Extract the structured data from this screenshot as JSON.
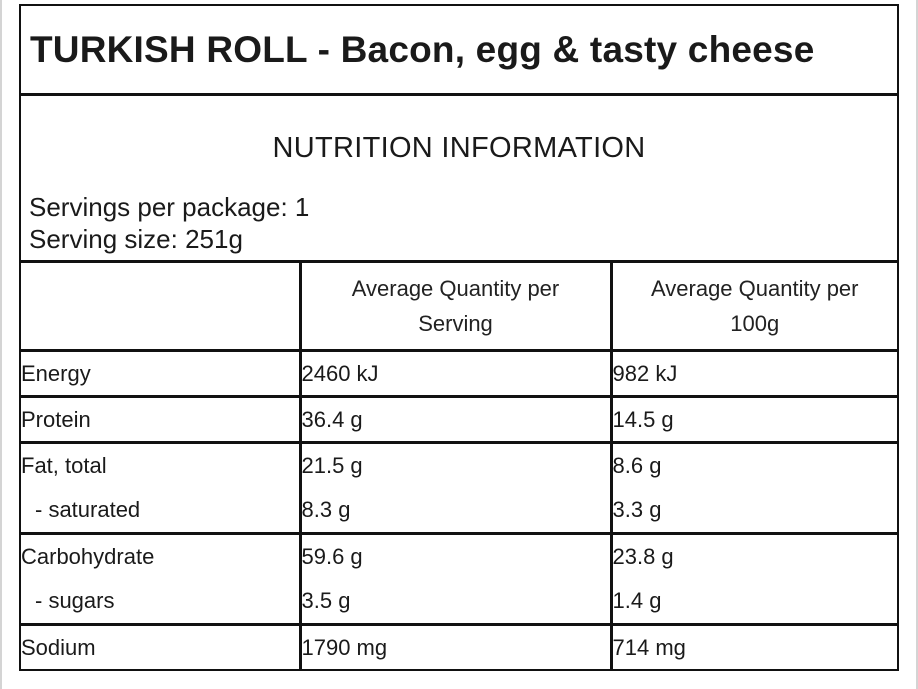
{
  "title": "TURKISH ROLL - Bacon, egg & tasty cheese",
  "info": {
    "heading": "NUTRITION INFORMATION",
    "servings_per_package": "Servings per package: 1",
    "serving_size": "Serving size: 251g"
  },
  "table": {
    "headers": [
      "",
      "Average Quantity per Serving",
      "Average Quantity per 100g"
    ],
    "rows": [
      {
        "label": "Energy",
        "per_serving": "2460 kJ",
        "per_100g": "982 kJ"
      },
      {
        "label": "Protein",
        "per_serving": "36.4 g",
        "per_100g": "14.5 g"
      },
      {
        "label": "Fat, total",
        "per_serving": "21.5 g",
        "per_100g": "8.6 g"
      },
      {
        "label": "- saturated",
        "per_serving": "8.3 g",
        "per_100g": "3.3 g"
      },
      {
        "label": "Carbohydrate",
        "per_serving": "59.6 g",
        "per_100g": "23.8 g"
      },
      {
        "label": "- sugars",
        "per_serving": "3.5 g",
        "per_100g": "1.4 g"
      },
      {
        "label": "Sodium",
        "per_serving": "1790 mg",
        "per_100g": "714 mg"
      }
    ]
  }
}
